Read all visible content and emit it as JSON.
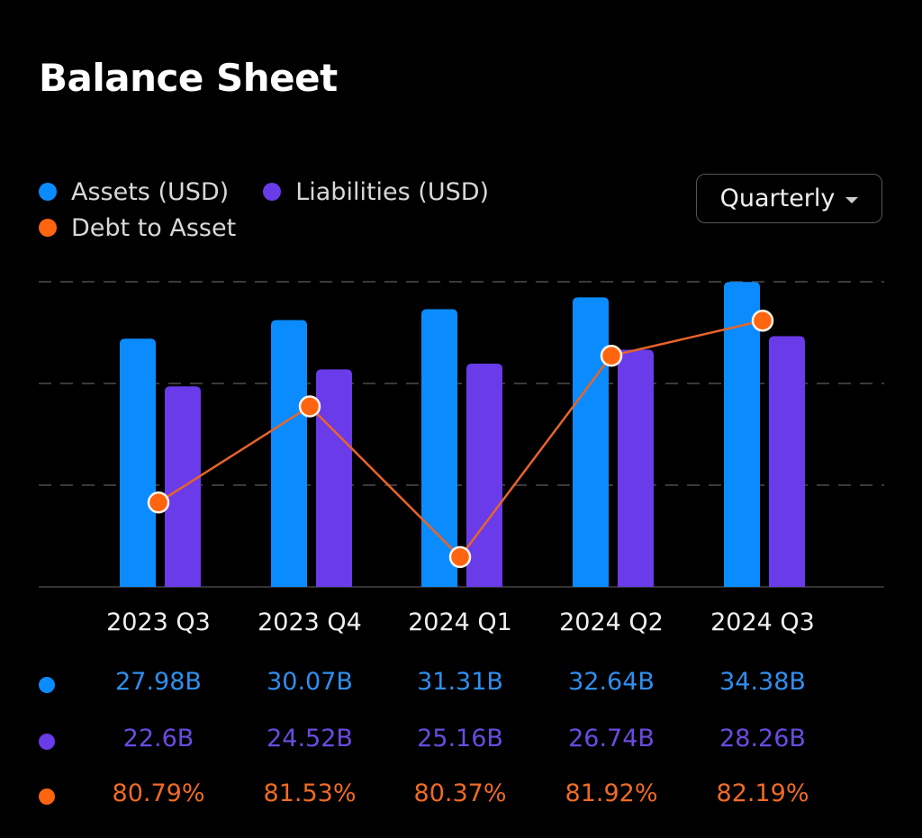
{
  "header": {
    "title": "Balance Sheet"
  },
  "legend": [
    {
      "label": "Assets (USD)",
      "color": "#0a8cff"
    },
    {
      "label": "Liabilities (USD)",
      "color": "#6a3be8"
    },
    {
      "label": "Debt to Asset",
      "color": "#ff6410"
    }
  ],
  "period_select": {
    "selected": "Quarterly"
  },
  "chart_data": {
    "type": "bar",
    "title": "Balance Sheet",
    "categories": [
      "2023 Q3",
      "2023 Q4",
      "2024 Q1",
      "2024 Q2",
      "2024 Q3"
    ],
    "series": [
      {
        "name": "Assets (USD)",
        "type": "bar",
        "unit": "B",
        "color": "#0a8cff",
        "values": [
          27.98,
          30.07,
          31.31,
          32.64,
          34.38
        ],
        "labels": [
          "27.98B",
          "30.07B",
          "31.31B",
          "32.64B",
          "34.38B"
        ]
      },
      {
        "name": "Liabilities (USD)",
        "type": "bar",
        "unit": "B",
        "color": "#6a3be8",
        "values": [
          22.6,
          24.52,
          25.16,
          26.74,
          28.26
        ],
        "labels": [
          "22.6B",
          "24.52B",
          "25.16B",
          "26.74B",
          "28.26B"
        ]
      },
      {
        "name": "Debt to Asset",
        "type": "line",
        "unit": "%",
        "color": "#ff6410",
        "values": [
          80.79,
          81.53,
          80.37,
          81.92,
          82.19
        ],
        "labels": [
          "80.79%",
          "81.53%",
          "80.37%",
          "81.92%",
          "82.19%"
        ]
      }
    ],
    "ylim_bars": [
      0,
      34.4
    ],
    "ylim_line": [
      80.14,
      82.49
    ],
    "grid": true,
    "legend_position": "top-left",
    "xlabel": "",
    "ylabel": ""
  },
  "table_colors": {
    "assets": "#2f8ff0",
    "liabilities": "#6a4be0",
    "ratio": "#f06a25"
  }
}
